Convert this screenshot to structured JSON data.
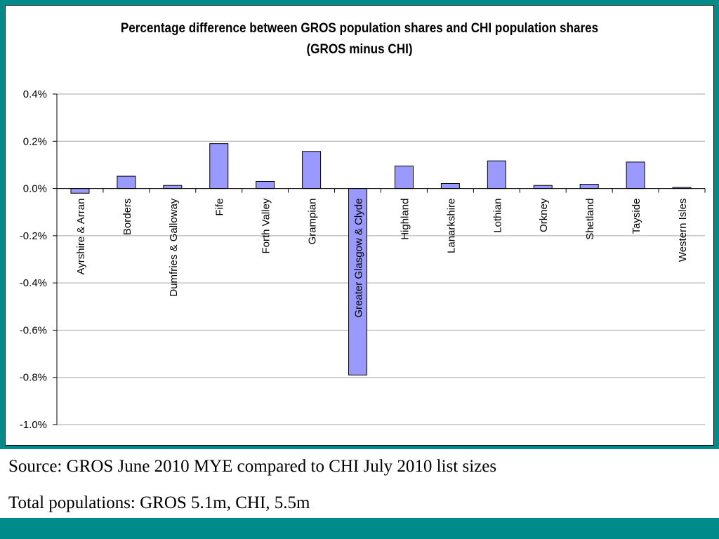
{
  "chart_data": {
    "type": "bar",
    "title": "Percentage difference between GROS population shares and CHI population shares",
    "subtitle": "(GROS minus CHI)",
    "xlabel": "",
    "ylabel": "",
    "ylim": [
      -1.0,
      0.4
    ],
    "yticks": [
      "0.4%",
      "0.2%",
      "0.0%",
      "-0.2%",
      "-0.4%",
      "-0.6%",
      "-0.8%",
      "-1.0%"
    ],
    "ytick_values": [
      0.4,
      0.2,
      0.0,
      -0.2,
      -0.4,
      -0.6,
      -0.8,
      -1.0
    ],
    "grid": true,
    "legend": "none",
    "categories": [
      "Ayrshire & Arran",
      "Borders",
      "Dumfries & Galloway",
      "Fife",
      "Forth Valley",
      "Grampian",
      "Greater Glasgow & Clyde",
      "Highland",
      "Lanarkshire",
      "Lothian",
      "Orkney",
      "Shetland",
      "Tayside",
      "Western Isles"
    ],
    "values": [
      -0.02,
      0.052,
      0.013,
      0.19,
      0.03,
      0.157,
      -0.79,
      0.095,
      0.021,
      0.117,
      0.013,
      0.018,
      0.112,
      0.004
    ],
    "bar_color": "#9999ff"
  },
  "notes": {
    "source": "Source: GROS June 2010 MYE compared to CHI July 2010 list sizes",
    "totals": "Total populations: GROS 5.1m, CHI, 5.5m"
  }
}
